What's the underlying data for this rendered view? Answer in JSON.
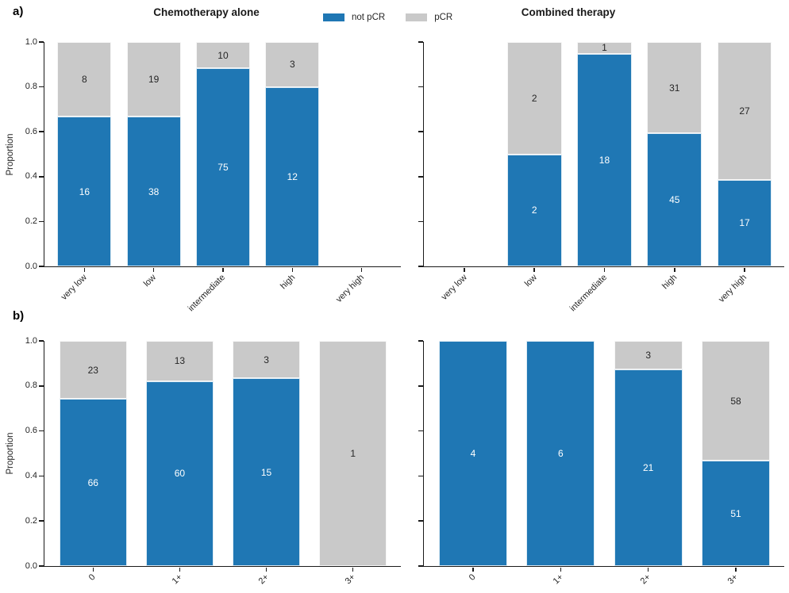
{
  "figure": {
    "panel_a_label": "a)",
    "panel_b_label": "b)",
    "ylabel": "Proportion",
    "y_ticks": [
      "0.0",
      "0.2",
      "0.4",
      "0.6",
      "0.8",
      "1.0"
    ],
    "colors": {
      "not_pcr": "#1f77b4",
      "pcr": "#c9c9c9",
      "axis": "#1a1a1a",
      "label_on_blue": "#ffffff",
      "label_on_gray": "#262626"
    },
    "legend": [
      {
        "label": "not pCR",
        "color_key": "not_pcr"
      },
      {
        "label": "pCR",
        "color_key": "pcr"
      }
    ]
  },
  "chart_data": [
    {
      "type": "bar",
      "stacked": true,
      "panel": "a-left",
      "title": "Chemotherapy alone",
      "ylabel": "Proportion",
      "ylim": [
        0,
        1
      ],
      "value_type": "counts",
      "categories": [
        "very low",
        "low",
        "intermediate",
        "high",
        "very high"
      ],
      "series": [
        {
          "name": "not pCR",
          "values": [
            16,
            38,
            75,
            12,
            null
          ]
        },
        {
          "name": "pCR",
          "values": [
            8,
            19,
            10,
            3,
            null
          ]
        }
      ]
    },
    {
      "type": "bar",
      "stacked": true,
      "panel": "a-right",
      "title": "Combined therapy",
      "ylim": [
        0,
        1
      ],
      "value_type": "counts",
      "categories": [
        "very low",
        "low",
        "intermediate",
        "high",
        "very high"
      ],
      "series": [
        {
          "name": "not pCR",
          "values": [
            null,
            2,
            18,
            45,
            17
          ]
        },
        {
          "name": "pCR",
          "values": [
            null,
            2,
            1,
            31,
            27
          ]
        }
      ]
    },
    {
      "type": "bar",
      "stacked": true,
      "panel": "b-left",
      "title": "",
      "ylabel": "Proportion",
      "ylim": [
        0,
        1
      ],
      "value_type": "counts",
      "categories": [
        "0",
        "1+",
        "2+",
        "3+"
      ],
      "series": [
        {
          "name": "not pCR",
          "values": [
            66,
            60,
            15,
            0
          ]
        },
        {
          "name": "pCR",
          "values": [
            23,
            13,
            3,
            1
          ]
        }
      ]
    },
    {
      "type": "bar",
      "stacked": true,
      "panel": "b-right",
      "title": "",
      "ylim": [
        0,
        1
      ],
      "value_type": "counts",
      "categories": [
        "0",
        "1+",
        "2+",
        "3+"
      ],
      "series": [
        {
          "name": "not pCR",
          "values": [
            4,
            6,
            21,
            51
          ]
        },
        {
          "name": "pCR",
          "values": [
            0,
            0,
            3,
            58
          ]
        }
      ]
    }
  ]
}
